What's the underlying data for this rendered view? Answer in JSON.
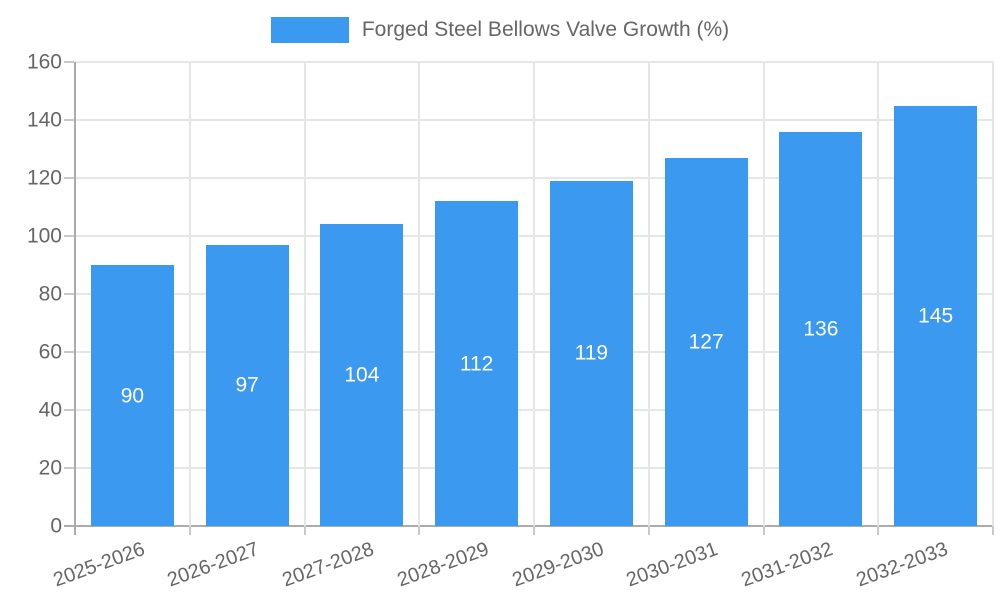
{
  "chart_data": {
    "type": "bar",
    "title": "Forged Steel Bellows Valve Growth (%)",
    "categories": [
      "2025-2026",
      "2026-2027",
      "2027-2028",
      "2028-2029",
      "2029-2030",
      "2030-2031",
      "2031-2032",
      "2032-2033"
    ],
    "values": [
      90,
      97,
      104,
      112,
      119,
      127,
      136,
      145
    ],
    "xlabel": "",
    "ylabel": "",
    "ylim": [
      0,
      160
    ],
    "ytick_step": 20,
    "yticks": [
      0,
      20,
      40,
      60,
      80,
      100,
      120,
      140,
      160
    ],
    "grid": true,
    "legend_position": "top-center",
    "value_labels": "inside-center"
  },
  "colors": {
    "bar": "#3b99f0",
    "gridline": "#e6e6e6",
    "axis_line": "#ababab",
    "tick_mark": "#c9c9c9",
    "axis_text": "#666666",
    "legend_text": "#666666",
    "value_label_text": "#ffffff",
    "background": "#ffffff"
  }
}
